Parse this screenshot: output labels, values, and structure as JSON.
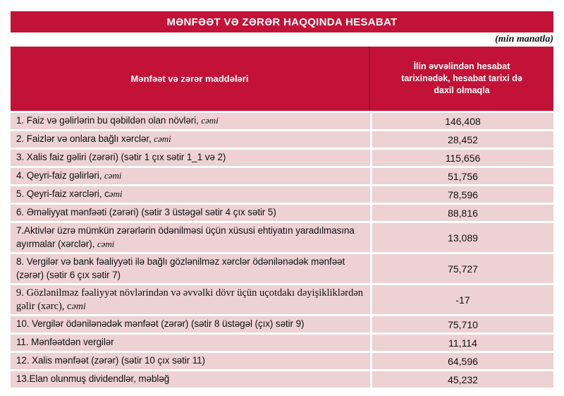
{
  "title_banner": "MƏNFƏƏT VƏ ZƏRƏR HAQQINDA HESABAT",
  "unit_note": "(min manatla)",
  "colors": {
    "accent_red": "#c31237",
    "row_pink": "#edd1d3",
    "header_divider": "#a50e2f",
    "text": "#111111"
  },
  "table": {
    "headers": {
      "items": "Mənfəət və zərər maddələri",
      "value": "İlin əvvəlindən hesabat tarixinədək, hesabat tarixi də daxil olmaqla"
    },
    "rows": [
      {
        "label": "1. Faiz və gəlirlərin bu qəbildən olan növləri, ",
        "label_italic": "cəmi",
        "value": "146,408",
        "serif": false
      },
      {
        "label": "2. Faizlər və onlara bağlı xərclər, ",
        "label_italic": "cəmi",
        "value": "28,452",
        "serif": false
      },
      {
        "label": "3. Xalis faiz gəliri (zərəri) (sətir 1 çıx sətir 1_1 və 2)",
        "label_italic": "",
        "value": "115,656",
        "serif": false
      },
      {
        "label": "4. Qeyri-faiz gəlirləri, ",
        "label_italic": "cəmi",
        "value": "51,756",
        "serif": false
      },
      {
        "label": "5. Qeyri-faiz xərcləri, c",
        "label_italic": "əmi",
        "value": "78,596",
        "serif": false
      },
      {
        "label": "6. Əməliyyat mənfəəti (zərəri) (sətir 3 üstəgəl sətir 4 çıx sətir 5)",
        "label_italic": "",
        "value": "88,816",
        "serif": false
      },
      {
        "label": "7.Aktivlər üzrə mümkün zərərlərin ödənilməsi üçün xüsusi ehtiyatın yaradılmasına ayırmalar (xərclər), ",
        "label_italic": "cəmi",
        "value": "13,089",
        "serif": false
      },
      {
        "label": "8. Vergilər və bank fəaliyyəti ilə bağlı gözlənilməz xərclər ödənilənədək mənfəət (zərər) (sətir 6 çıx sətir 7)",
        "label_italic": "",
        "value": "75,727",
        "serif": false
      },
      {
        "label": "9. Gözlənilməz fəaliyyət növlərindən və əvvəlki dövr üçün uçotdakı dəyişikliklərdən gəlir (xərc), c",
        "label_italic": "əmi",
        "value": "-17",
        "serif": true
      },
      {
        "label": "10. Vergilər ödənilənədək mənfəət (zərər) (sətir 8 üstəgəl (çıx) sətir 9)",
        "label_italic": "",
        "value": "75,710",
        "serif": false
      },
      {
        "label": "11. Mənfəətdən vergilər",
        "label_italic": "",
        "value": "11,114",
        "serif": false
      },
      {
        "label": "12. Xalis mənfəət (zərər) (sətir 10 çıx sətir 11)",
        "label_italic": "",
        "value": "64,596",
        "serif": false
      },
      {
        "label": "13.Elan olunmuş dividendlər, məbləğ",
        "label_italic": "",
        "value": "45,232",
        "serif": false
      }
    ]
  }
}
